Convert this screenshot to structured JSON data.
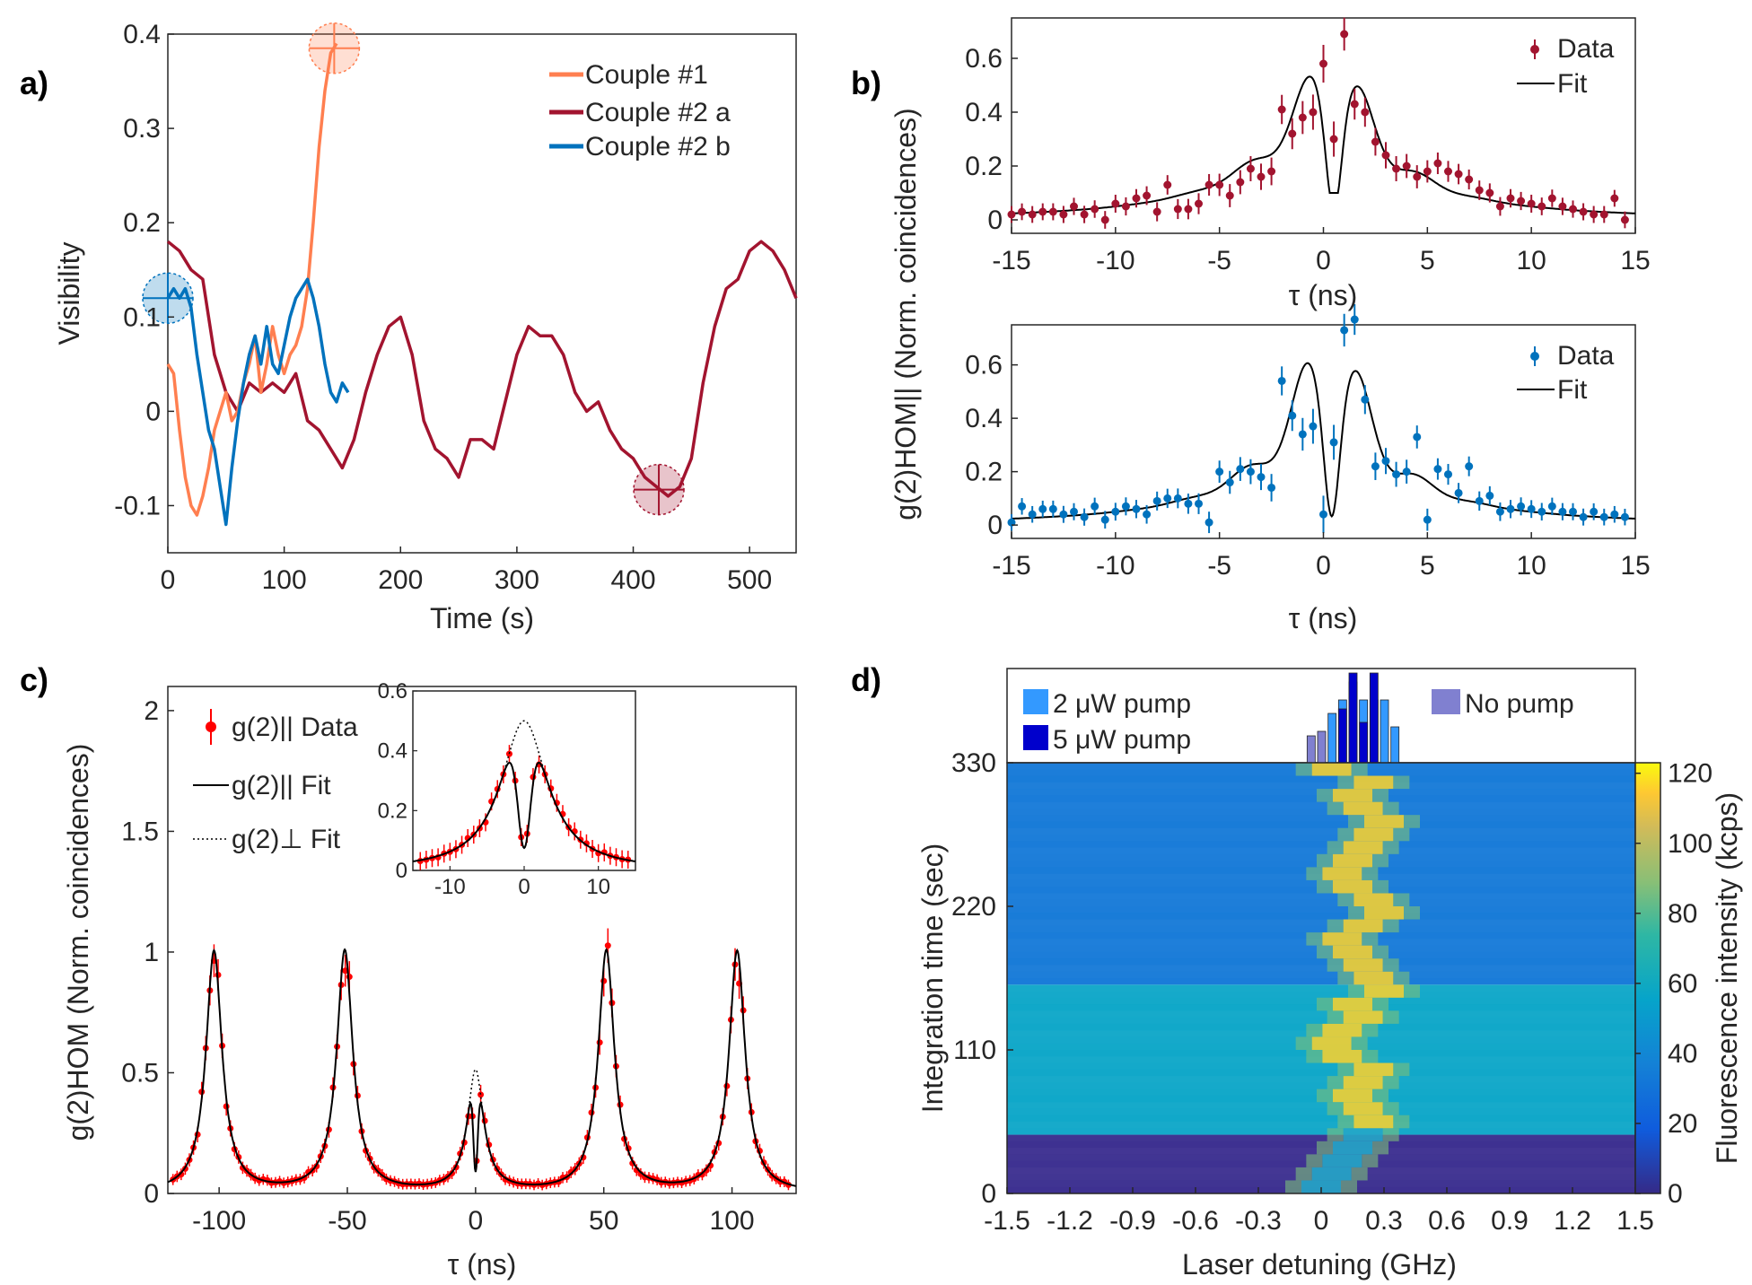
{
  "chart_data": [
    {
      "panel": "a)",
      "type": "line",
      "xlabel": "Time (s)",
      "ylabel": "Visibility",
      "xlim": [
        0,
        540
      ],
      "ylim": [
        -0.15,
        0.4
      ],
      "xticks": [
        "0",
        "100",
        "200",
        "300",
        "400",
        "500"
      ],
      "yticks": [
        "-0.1",
        "0",
        "0.1",
        "0.2",
        "0.3",
        "0.4"
      ],
      "legend": [
        "Couple #1",
        "Couple #2 a",
        "Couple #2 b"
      ],
      "colors": {
        "c1": "#ff7f50",
        "c2a": "#a2142f",
        "c2b": "#0072bd"
      },
      "series": [
        {
          "name": "Couple #1",
          "x": [
            0,
            5,
            10,
            15,
            20,
            25,
            30,
            35,
            40,
            45,
            50,
            55,
            60,
            65,
            70,
            75,
            80,
            85,
            90,
            95,
            100,
            105,
            110,
            115,
            120,
            125,
            130,
            135,
            140,
            145
          ],
          "y": [
            0.05,
            0.04,
            -0.02,
            -0.07,
            -0.1,
            -0.11,
            -0.09,
            -0.06,
            -0.02,
            0.0,
            0.02,
            -0.01,
            0.0,
            0.03,
            0.05,
            0.08,
            0.02,
            0.05,
            0.09,
            0.06,
            0.04,
            0.06,
            0.07,
            0.09,
            0.13,
            0.2,
            0.28,
            0.34,
            0.38,
            0.39
          ]
        },
        {
          "name": "Couple #2 a",
          "x": [
            0,
            10,
            20,
            30,
            40,
            50,
            60,
            70,
            80,
            90,
            100,
            110,
            120,
            130,
            140,
            150,
            160,
            170,
            180,
            190,
            200,
            210,
            220,
            230,
            240,
            250,
            260,
            270,
            280,
            290,
            300,
            310,
            320,
            330,
            340,
            350,
            360,
            370,
            380,
            390,
            400,
            410,
            420,
            430,
            440,
            450,
            460,
            470,
            480,
            490,
            500,
            510,
            520,
            530,
            540
          ],
          "y": [
            0.18,
            0.17,
            0.15,
            0.14,
            0.06,
            0.02,
            0.0,
            0.03,
            0.02,
            0.03,
            0.02,
            0.04,
            -0.01,
            -0.02,
            -0.04,
            -0.06,
            -0.03,
            0.02,
            0.06,
            0.09,
            0.1,
            0.06,
            -0.01,
            -0.04,
            -0.05,
            -0.07,
            -0.03,
            -0.03,
            -0.04,
            0.01,
            0.06,
            0.09,
            0.08,
            0.08,
            0.06,
            0.02,
            0.0,
            0.01,
            -0.02,
            -0.04,
            -0.05,
            -0.07,
            -0.08,
            -0.09,
            -0.08,
            -0.05,
            0.03,
            0.09,
            0.13,
            0.14,
            0.17,
            0.18,
            0.17,
            0.15,
            0.12
          ]
        },
        {
          "name": "Couple #2 b",
          "x": [
            0,
            5,
            10,
            15,
            20,
            25,
            30,
            35,
            40,
            45,
            50,
            55,
            60,
            65,
            70,
            75,
            80,
            85,
            90,
            95,
            100,
            105,
            110,
            115,
            120,
            125,
            130,
            135,
            140,
            145,
            150,
            155
          ],
          "y": [
            0.12,
            0.13,
            0.12,
            0.13,
            0.11,
            0.06,
            0.02,
            -0.02,
            -0.04,
            -0.08,
            -0.12,
            -0.06,
            -0.01,
            0.03,
            0.06,
            0.08,
            0.05,
            0.09,
            0.05,
            0.04,
            0.07,
            0.1,
            0.12,
            0.13,
            0.14,
            0.12,
            0.09,
            0.05,
            0.02,
            0.01,
            0.03,
            0.02
          ]
        }
      ],
      "markers": [
        {
          "x": 0,
          "y": 0.12,
          "color": "#0072bd"
        },
        {
          "x": 143,
          "y": 0.385,
          "color": "#ff7f50"
        },
        {
          "x": 422,
          "y": -0.083,
          "color": "#a2142f"
        }
      ]
    },
    {
      "panel": "b)",
      "type": "scatter",
      "xlabel": "τ (ns)",
      "ylabel": "g(2)HOM|| (Norm. coincidences)",
      "xlim": [
        -15,
        15
      ],
      "ylim": [
        -0.05,
        0.75
      ],
      "xticks": [
        "-15",
        "-10",
        "-5",
        "0",
        "5",
        "10",
        "15"
      ],
      "yticks": [
        "0",
        "0.2",
        "0.4",
        "0.6"
      ],
      "subplots": [
        {
          "name": "top",
          "color": "#a2142f",
          "legend": [
            "Data",
            "Fit"
          ],
          "data_x": [
            -15,
            -14.5,
            -14,
            -13.5,
            -13,
            -12.5,
            -12,
            -11.5,
            -11,
            -10.5,
            -10,
            -9.5,
            -9,
            -8.5,
            -8,
            -7.5,
            -7,
            -6.5,
            -6,
            -5.5,
            -5,
            -4.5,
            -4,
            -3.5,
            -3,
            -2.5,
            -2,
            -1.5,
            -1,
            -0.5,
            0,
            0.5,
            1,
            1.5,
            2,
            2.5,
            3,
            3.5,
            4,
            4.5,
            5,
            5.5,
            6,
            6.5,
            7,
            7.5,
            8,
            8.5,
            9,
            9.5,
            10,
            10.5,
            11,
            11.5,
            12,
            12.5,
            13,
            13.5,
            14,
            14.5
          ],
          "data_y": [
            0.02,
            0.03,
            0.02,
            0.03,
            0.03,
            0.02,
            0.05,
            0.02,
            0.04,
            0.0,
            0.06,
            0.05,
            0.08,
            0.09,
            0.03,
            0.13,
            0.04,
            0.04,
            0.06,
            0.13,
            0.13,
            0.09,
            0.14,
            0.19,
            0.16,
            0.18,
            0.41,
            0.32,
            0.38,
            0.4,
            0.58,
            0.3,
            0.69,
            0.43,
            0.4,
            0.29,
            0.24,
            0.19,
            0.2,
            0.16,
            0.18,
            0.21,
            0.18,
            0.17,
            0.15,
            0.11,
            0.1,
            0.05,
            0.08,
            0.07,
            0.06,
            0.05,
            0.08,
            0.05,
            0.04,
            0.03,
            0.02,
            0.02,
            0.08,
            0.0
          ]
        },
        {
          "name": "bottom",
          "color": "#0072bd",
          "legend": [
            "Data",
            "Fit"
          ],
          "data_x": [
            -15,
            -14.5,
            -14,
            -13.5,
            -13,
            -12.5,
            -12,
            -11.5,
            -11,
            -10.5,
            -10,
            -9.5,
            -9,
            -8.5,
            -8,
            -7.5,
            -7,
            -6.5,
            -6,
            -5.5,
            -5,
            -4.5,
            -4,
            -3.5,
            -3,
            -2.5,
            -2,
            -1.5,
            -1,
            -0.5,
            0,
            0.5,
            1,
            1.5,
            2,
            2.5,
            3,
            3.5,
            4,
            4.5,
            5,
            5.5,
            6,
            6.5,
            7,
            7.5,
            8,
            8.5,
            9,
            9.5,
            10,
            10.5,
            11,
            11.5,
            12,
            12.5,
            13,
            13.5,
            14,
            14.5
          ],
          "data_y": [
            0.01,
            0.07,
            0.04,
            0.06,
            0.06,
            0.04,
            0.05,
            0.03,
            0.07,
            0.02,
            0.05,
            0.07,
            0.06,
            0.04,
            0.09,
            0.1,
            0.1,
            0.08,
            0.08,
            0.01,
            0.2,
            0.16,
            0.21,
            0.2,
            0.18,
            0.14,
            0.54,
            0.41,
            0.34,
            0.37,
            0.04,
            0.31,
            0.73,
            0.77,
            0.47,
            0.22,
            0.24,
            0.19,
            0.2,
            0.33,
            0.02,
            0.21,
            0.19,
            0.12,
            0.22,
            0.09,
            0.11,
            0.05,
            0.06,
            0.07,
            0.06,
            0.05,
            0.07,
            0.05,
            0.05,
            0.03,
            0.05,
            0.03,
            0.04,
            0.03
          ]
        }
      ]
    },
    {
      "panel": "c)",
      "type": "line",
      "xlabel": "τ (ns)",
      "ylabel": "g(2)HOM (Norm. coincidences)",
      "xlim": [
        -120,
        125
      ],
      "ylim": [
        0,
        2.1
      ],
      "xticks": [
        "-100",
        "-50",
        "0",
        "50",
        "100"
      ],
      "yticks": [
        "0",
        "0.5",
        "1",
        "1.5",
        "2"
      ],
      "legend": [
        "g(2)|| Data",
        "g(2)|| Fit",
        "g(2)⊥ Fit"
      ],
      "peaks": [
        -102,
        -51,
        0,
        51,
        102
      ],
      "inset": {
        "xlim": [
          -15,
          15
        ],
        "ylim": [
          0,
          0.6
        ],
        "xticks": [
          "-10",
          "0",
          "10"
        ],
        "yticks": [
          "0",
          "0.2",
          "0.4",
          "0.6"
        ]
      }
    },
    {
      "panel": "d)",
      "type": "heatmap",
      "xlabel": "Laser detuning (GHz)",
      "ylabel": "Integration time (sec)",
      "colorbar_label": "Fluorescence intensity (kcps)",
      "xticks": [
        "-1.5",
        "-1.2",
        "-0.9",
        "-0.6",
        "-0.3",
        "0",
        "0.3",
        "0.6",
        "0.9",
        "1.2",
        "1.5"
      ],
      "yticks": [
        "0",
        "110",
        "220",
        "330"
      ],
      "cticks": [
        "0",
        "20",
        "40",
        "60",
        "80",
        "100",
        "120"
      ],
      "legend": [
        "2 μW pump",
        "5 μW pump",
        "No pump"
      ],
      "bands": [
        {
          "from": 0,
          "to": 45,
          "label": "No pump",
          "background_kcps": 5
        },
        {
          "from": 45,
          "to": 160,
          "label": "2 μW pump",
          "background_kcps": 50
        },
        {
          "from": 160,
          "to": 330,
          "label": "5 μW pump",
          "background_kcps": 30
        }
      ],
      "peak_track_ghz": [
        0.0,
        0.05,
        0.1,
        0.15,
        0.2,
        0.25,
        0.2,
        0.15,
        0.2,
        0.25,
        0.1,
        0.05,
        0.1,
        0.2,
        0.15,
        0.3,
        0.25,
        0.2,
        0.15,
        0.1,
        0.2,
        0.3,
        0.25,
        0.15,
        0.1,
        0.15,
        0.2,
        0.25,
        0.3,
        0.2,
        0.15,
        0.25,
        0.05
      ]
    }
  ]
}
